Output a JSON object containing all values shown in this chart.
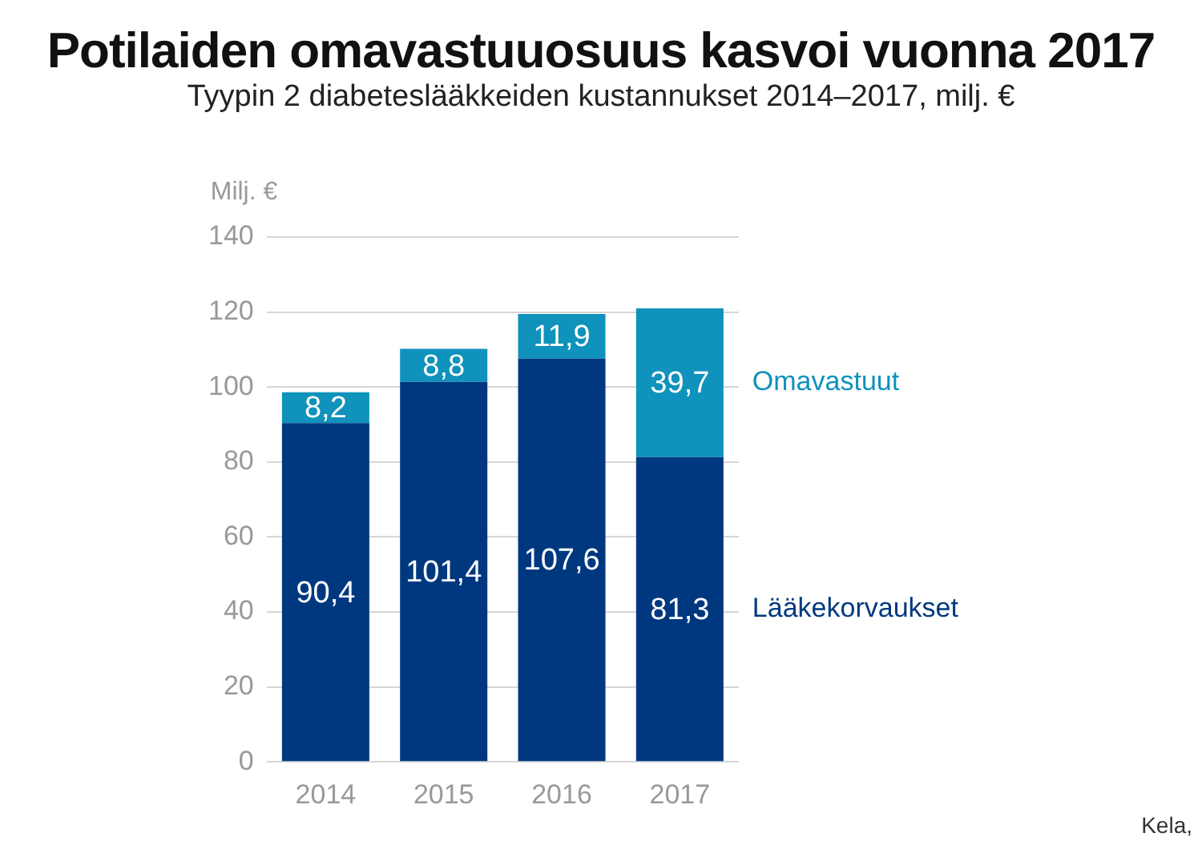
{
  "chart_data": {
    "type": "bar",
    "title": "Potilaiden omavastuuosuus kasvoi vuonna 2017",
    "subtitle": "Tyypin 2 diabeteslääkkeiden kustannukset 2014–2017, milj. €",
    "ylabel": "Milj. €",
    "categories": [
      "2014",
      "2015",
      "2016",
      "2017"
    ],
    "stacked": true,
    "series": [
      {
        "name": "Lääkekorvaukset",
        "color": "#00387f",
        "values": [
          90.4,
          101.4,
          107.6,
          81.3
        ],
        "value_labels": [
          "90,4",
          "101,4",
          "107,6",
          "81,3"
        ]
      },
      {
        "name": "Omavastuut",
        "color": "#0f92bb",
        "values": [
          8.2,
          8.8,
          11.9,
          39.7
        ],
        "value_labels": [
          "8,2",
          "8,8",
          "11,9",
          "39,7"
        ]
      }
    ],
    "ylim": [
      0,
      140
    ],
    "yticks": [
      0,
      20,
      40,
      60,
      80,
      100,
      120,
      140
    ],
    "grid": "y",
    "annotations": [
      "Kela,"
    ]
  }
}
